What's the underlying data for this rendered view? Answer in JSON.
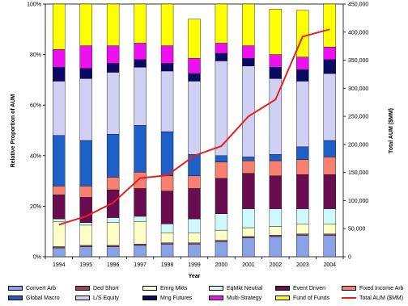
{
  "chart_data": {
    "type": "bar",
    "subtype": "stacked-percent-with-line",
    "categories": [
      "1994",
      "1995",
      "1996",
      "1997",
      "1998",
      "1999",
      "2000",
      "2001",
      "2002",
      "2003",
      "2004"
    ],
    "xlabel": "Year",
    "ylabel": "Relative Proportion of AUM",
    "y2label": "Total AUM ($MM)",
    "ylim": [
      0,
      100
    ],
    "y_ticks": [
      "0%",
      "20%",
      "40%",
      "60%",
      "80%",
      "100%"
    ],
    "y2lim": [
      0,
      450000
    ],
    "y2_ticks": [
      "0",
      "50,000",
      "100,000",
      "150,000",
      "200,000",
      "250,000",
      "300,000",
      "350,000",
      "400,000",
      "450,000"
    ],
    "legend_position": "bottom",
    "series": [
      {
        "name": "Convert Arb",
        "color": "#8aa3e6",
        "values": [
          3.5,
          4,
          4,
          4.5,
          5,
          5,
          6,
          7.5,
          8,
          8.5,
          8.5
        ]
      },
      {
        "name": "Ded Short",
        "color": "#a0425e",
        "values": [
          0.5,
          0.5,
          0.5,
          0.5,
          0.5,
          0.5,
          0.5,
          0.5,
          0.5,
          0.5,
          0.5
        ]
      },
      {
        "name": "Emrg Mkts",
        "color": "#ffffc8",
        "values": [
          10,
          8,
          9,
          9,
          4,
          4,
          4,
          3.5,
          3.5,
          4,
          4
        ]
      },
      {
        "name": "EqMkt Neutral",
        "color": "#cff8ff",
        "values": [
          1,
          1,
          2,
          2,
          3.5,
          5.5,
          6.5,
          7.5,
          7,
          6,
          6
        ]
      },
      {
        "name": "Event Driven",
        "color": "#6a0d50",
        "values": [
          9.5,
          10,
          11,
          11,
          13,
          12,
          14,
          14,
          13,
          13.5,
          13.5
        ]
      },
      {
        "name": "Fixed Income Arb",
        "color": "#f88070",
        "values": [
          3.5,
          4.5,
          5,
          6.5,
          6,
          5,
          6.5,
          5,
          6,
          6,
          7
        ]
      },
      {
        "name": "Global Macro",
        "color": "#1e5fc8",
        "values": [
          20,
          18,
          17,
          18.5,
          17.5,
          8.5,
          2.5,
          1.5,
          2.5,
          5,
          6.5
        ]
      },
      {
        "name": "L/S Equity",
        "color": "#d0d0f4",
        "values": [
          21.5,
          24.5,
          24.5,
          23,
          24,
          29,
          37.5,
          36,
          30,
          26,
          26.5
        ]
      },
      {
        "name": "Mng Futures",
        "color": "#0a0a64",
        "values": [
          5.5,
          4,
          3.5,
          3,
          3,
          3,
          3,
          3,
          4.5,
          4.5,
          5.5
        ]
      },
      {
        "name": "Multi-Strategy",
        "color": "#ee10ee",
        "values": [
          7,
          9,
          7,
          6.5,
          7,
          6,
          4,
          5,
          5,
          5,
          5
        ]
      },
      {
        "name": "Fund of Funds",
        "color": "#ffff00",
        "values": [
          18,
          16.5,
          16.5,
          15.5,
          16.5,
          15.5,
          15.5,
          16.5,
          18,
          18.5,
          17
        ]
      }
    ],
    "line_series": {
      "name": "Total AUM ($MM)",
      "color": "#e81f1f",
      "axis": "right",
      "values": [
        57000,
        72000,
        96000,
        140000,
        145000,
        180000,
        197000,
        250000,
        280000,
        392000,
        405000
      ]
    }
  }
}
